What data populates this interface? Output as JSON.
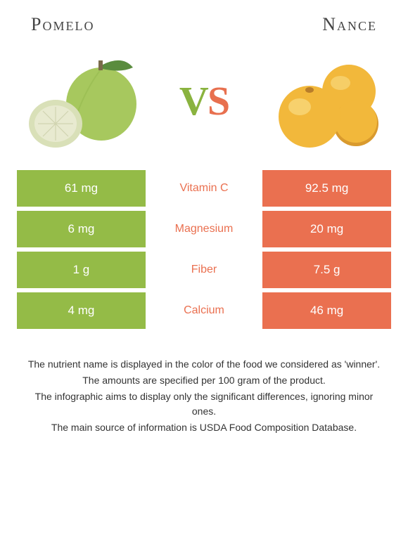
{
  "header": {
    "left_title": "Pomelo",
    "right_title": "Nance",
    "vs_v": "V",
    "vs_s": "S"
  },
  "colors": {
    "left": "#94bb47",
    "right": "#ea7050",
    "left_color_dark": "#7a9e38",
    "pomelo_body": "#a7c85e",
    "pomelo_shade": "#8fb348",
    "pomelo_leaf": "#5a8c3e",
    "pomelo_flesh": "#e8ead0",
    "pomelo_rind": "#d9e0b8",
    "nance_body": "#f2b83b",
    "nance_highlight": "#f8d77a",
    "nance_shade": "#d99a2e"
  },
  "table": {
    "rows": [
      {
        "left": "61 mg",
        "label": "Vitamin C",
        "right": "92.5 mg",
        "winner": "right"
      },
      {
        "left": "6 mg",
        "label": "Magnesium",
        "right": "20 mg",
        "winner": "right"
      },
      {
        "left": "1 g",
        "label": "Fiber",
        "right": "7.5 g",
        "winner": "right"
      },
      {
        "left": "4 mg",
        "label": "Calcium",
        "right": "46 mg",
        "winner": "right"
      }
    ]
  },
  "footnotes": [
    "The nutrient name is displayed in the color of the food we considered as 'winner'.",
    "The amounts are specified per 100 gram of the product.",
    "The infographic aims to display only the significant differences, ignoring minor ones.",
    "The main source of information is USDA Food Composition Database."
  ]
}
